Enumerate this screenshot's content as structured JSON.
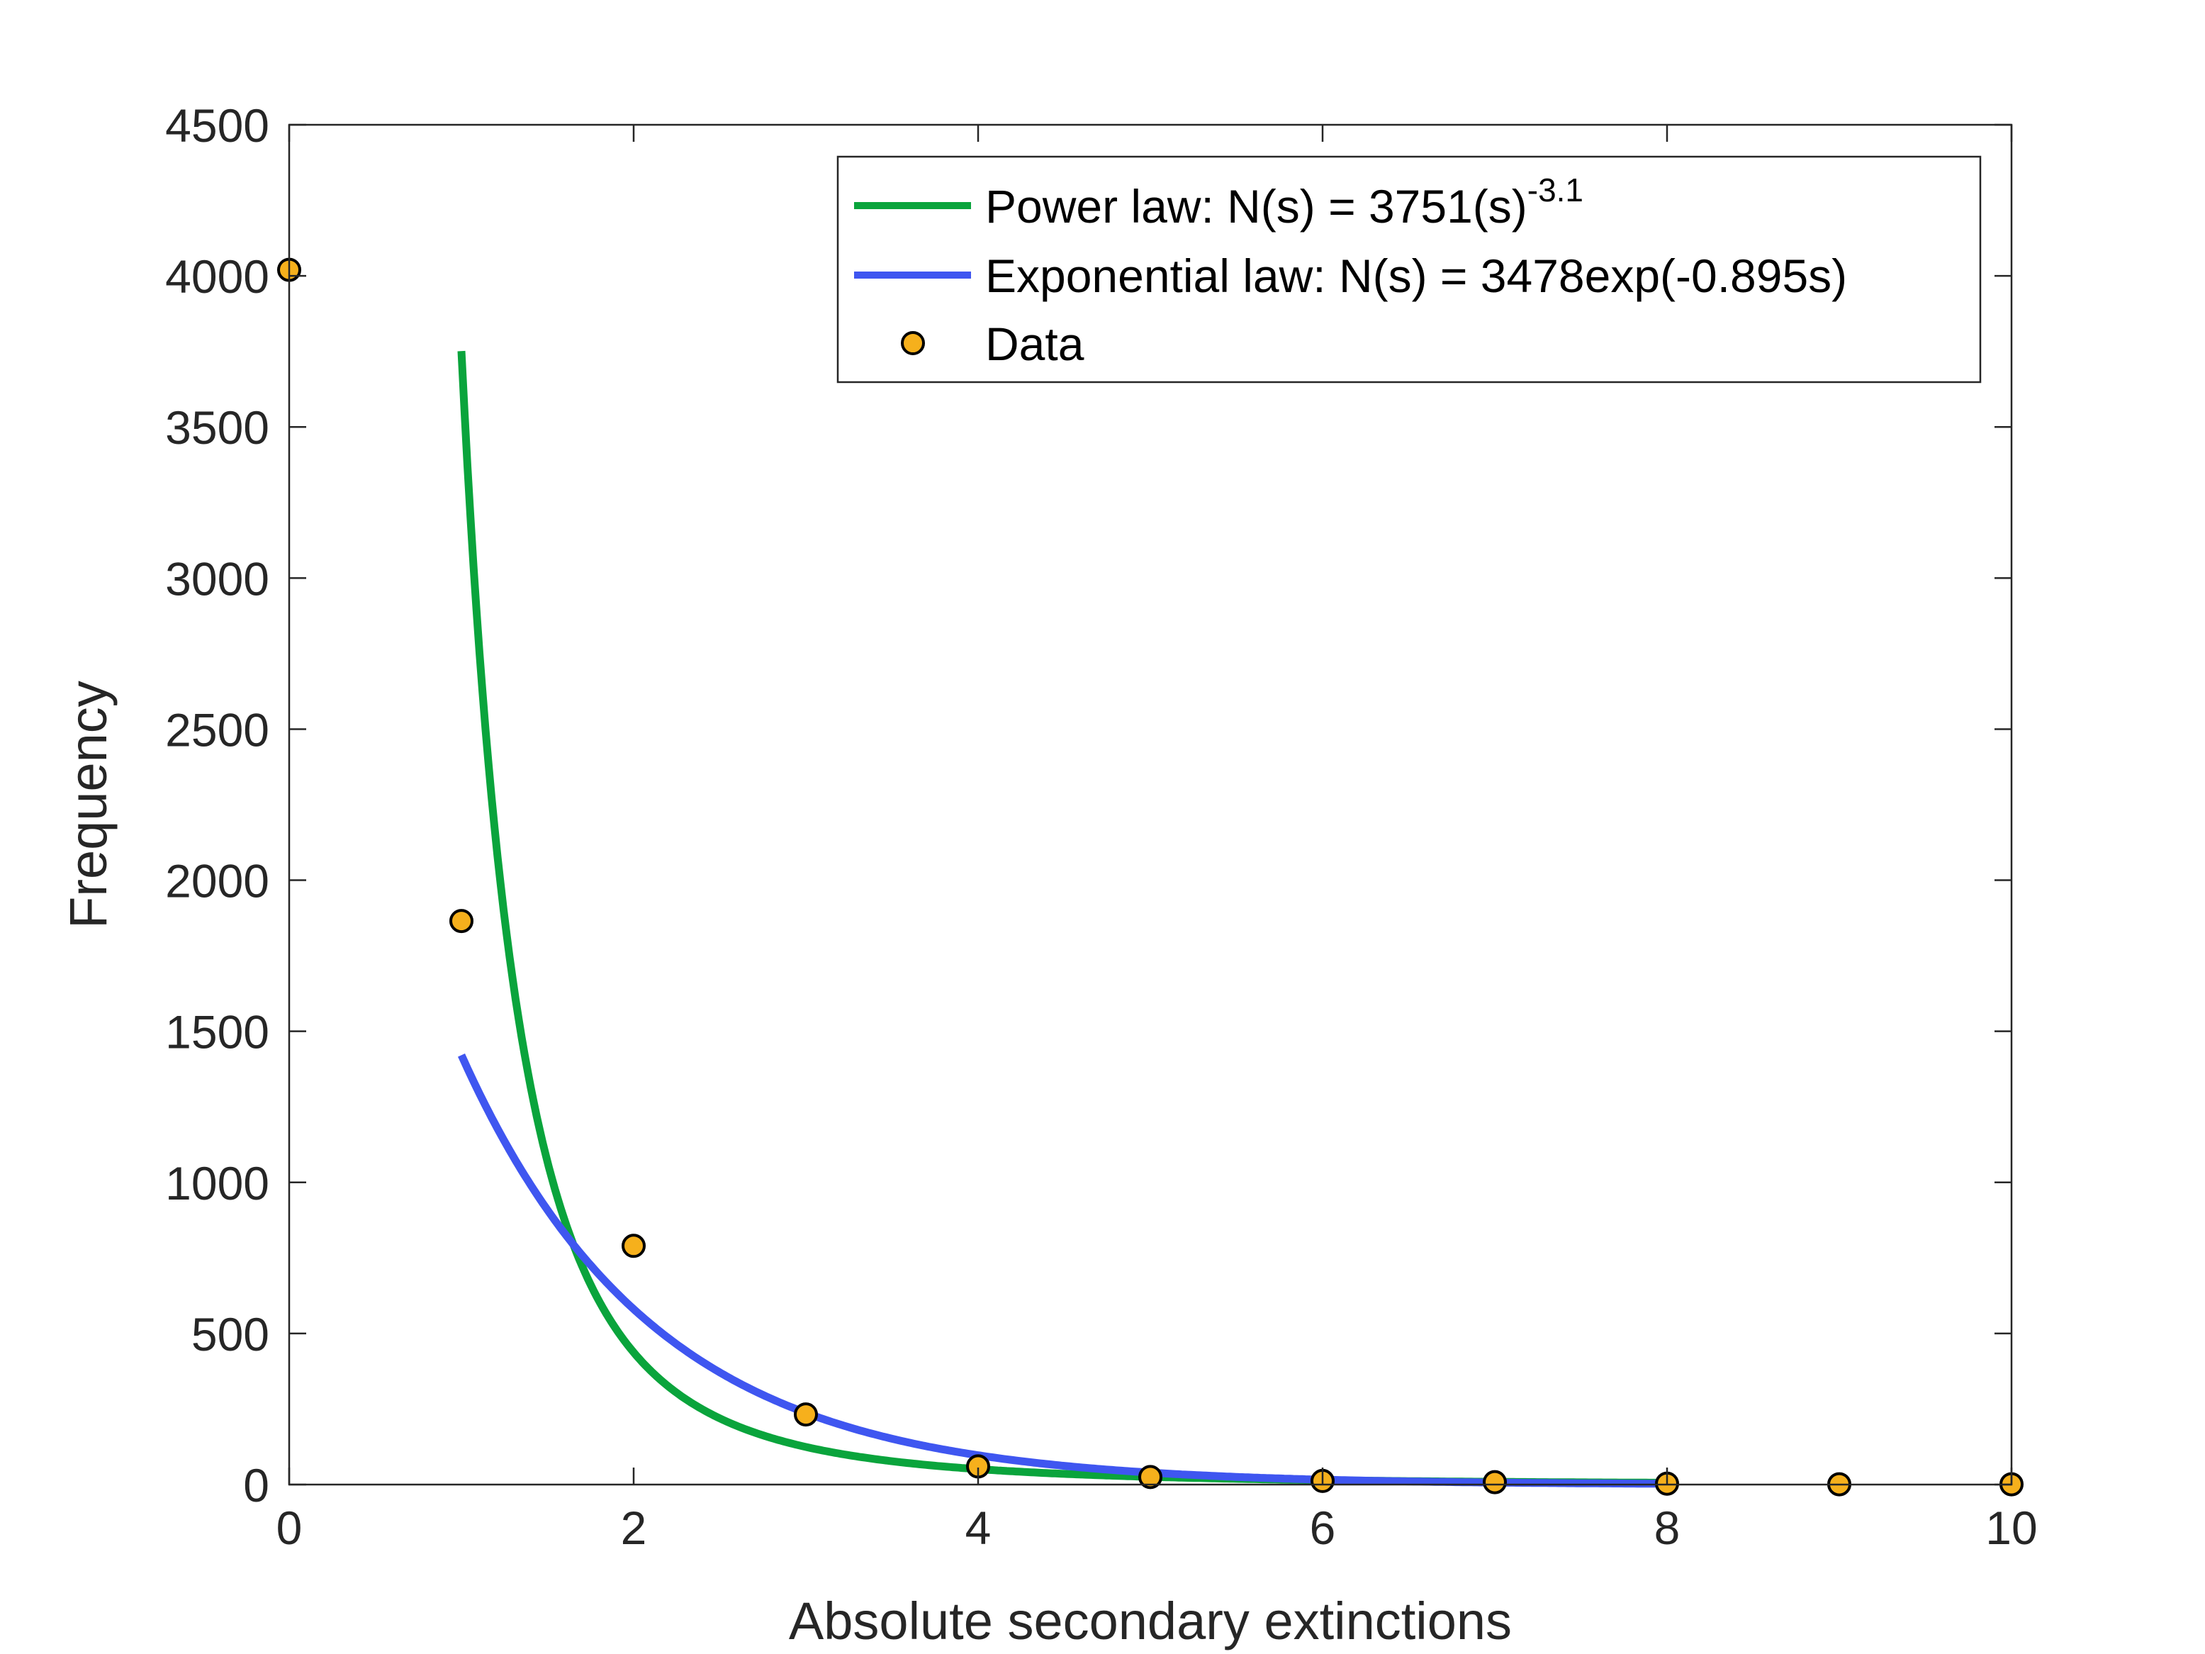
{
  "chart_data": {
    "type": "scatter",
    "title": "",
    "xlabel": "Absolute secondary extinctions",
    "ylabel": "Frequency",
    "xlim": [
      0,
      10
    ],
    "ylim": [
      0,
      4500
    ],
    "x_ticks": [
      "0",
      "2",
      "4",
      "6",
      "8",
      "10"
    ],
    "y_ticks": [
      "0",
      "500",
      "1000",
      "1500",
      "2000",
      "2500",
      "3000",
      "3500",
      "4000",
      "4500"
    ],
    "grid": false,
    "legend_position": "top-right",
    "series": [
      {
        "name": "Power law: N(s) = 3751(s)",
        "superscript": "-3.1",
        "type": "line",
        "color": "#0aa43c",
        "model": "power",
        "coefficient": 3751,
        "exponent": -3.1,
        "x_range": [
          1,
          8
        ]
      },
      {
        "name": "Exponential law: N(s) = 3478exp(-0.895s)",
        "type": "line",
        "color": "#3f56f0",
        "model": "exponential",
        "coefficient": 3478,
        "rate": -0.895,
        "x_range": [
          1,
          8
        ]
      },
      {
        "name": "Data",
        "type": "scatter",
        "color": "#f6b01c",
        "edge_color": "#000000",
        "x": [
          0,
          1,
          2,
          3,
          4,
          5,
          6,
          7,
          8,
          9,
          10
        ],
        "y": [
          4020,
          1865,
          790,
          232,
          60,
          25,
          12,
          8,
          3,
          1,
          1
        ]
      }
    ]
  }
}
